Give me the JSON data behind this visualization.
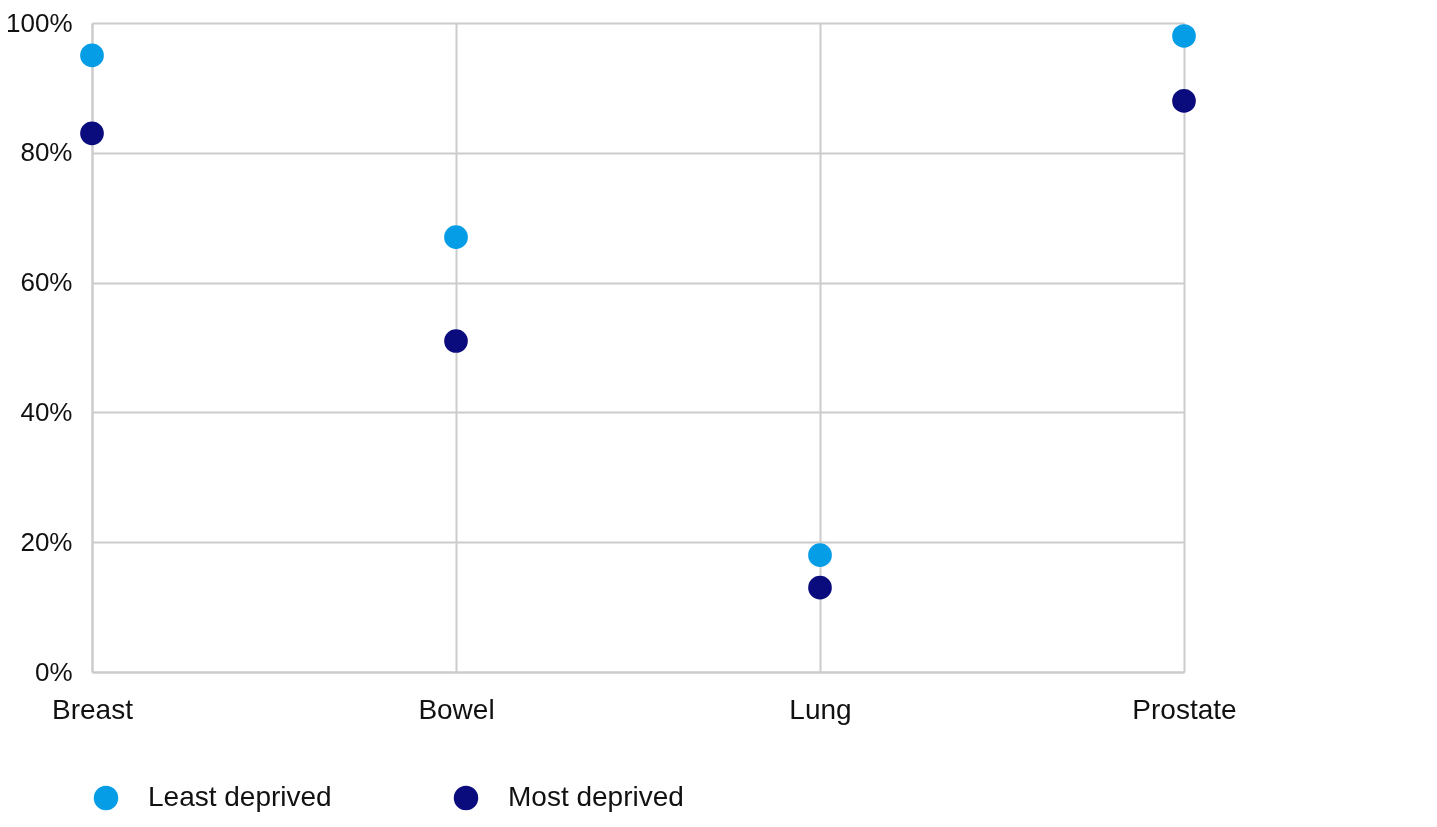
{
  "chart_data": {
    "type": "scatter",
    "categories": [
      "Breast",
      "Bowel",
      "Lung",
      "Prostate"
    ],
    "series": [
      {
        "name": "Least deprived",
        "color": "#049de6",
        "values": [
          95,
          67,
          18,
          98
        ]
      },
      {
        "name": "Most deprived",
        "color": "#0a0b7c",
        "values": [
          83,
          51,
          13,
          88
        ]
      }
    ],
    "ylim": [
      0,
      100
    ],
    "yticks": [
      {
        "value": 0,
        "label": "0%"
      },
      {
        "value": 20,
        "label": "20%"
      },
      {
        "value": 40,
        "label": "40%"
      },
      {
        "value": 60,
        "label": "60%"
      },
      {
        "value": 80,
        "label": "80%"
      },
      {
        "value": 100,
        "label": "100%"
      }
    ],
    "grid": true,
    "legend": "bottom",
    "marker": "circle"
  }
}
